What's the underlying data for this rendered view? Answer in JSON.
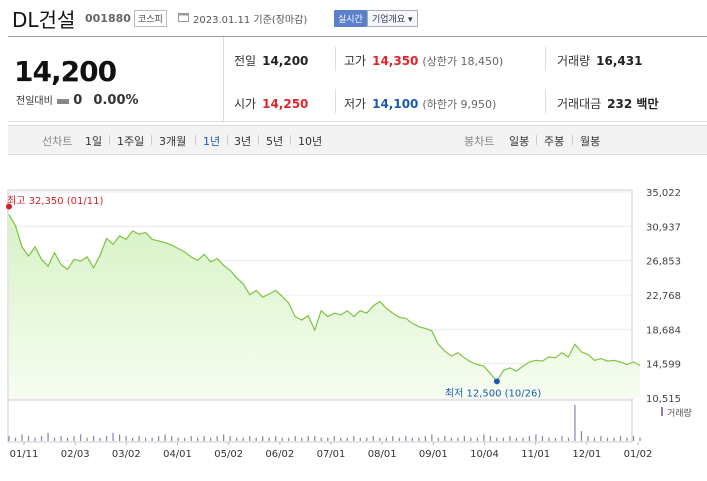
{
  "header": {
    "name": "DL건설",
    "code": "001880",
    "market": "코스피",
    "date": "2023.01.11 기준(장마감)",
    "realtime": "실시간",
    "overview": "기업개요 ▾"
  },
  "summary": {
    "price": "14,200",
    "change_label": "전일대비",
    "change": "0",
    "change_pct": "0.00%",
    "prev_label": "전일",
    "prev": "14,200",
    "high_label": "고가",
    "high": "14,350",
    "upper_limit": "(상한가 18,450)",
    "volume_label": "거래량",
    "volume": "16,431",
    "open_label": "시가",
    "open": "14,250",
    "low_label": "저가",
    "low": "14,100",
    "lower_limit": "(하한가 9,950)",
    "amount_label": "거래대금",
    "amount": "232 백만"
  },
  "tabs": {
    "line_label": "선차트",
    "line": [
      "1일",
      "1주일",
      "3개월",
      "1년",
      "3년",
      "5년",
      "10년"
    ],
    "selected": "1년",
    "candle_label": "봉차트",
    "candle": [
      "일봉",
      "주봉",
      "월봉"
    ]
  },
  "chart_data": {
    "type": "area",
    "title": "",
    "y_ticks": [
      "35,022",
      "30,937",
      "26,853",
      "22,768",
      "18,684",
      "14,599",
      "10,515"
    ],
    "ylim": [
      10515,
      35022
    ],
    "x_ticks": [
      "01/11",
      "02/03",
      "03/02",
      "04/01",
      "05/02",
      "06/02",
      "07/01",
      "08/01",
      "09/01",
      "10/04",
      "11/01",
      "12/01",
      "01/02"
    ],
    "max_label": "최고 32,350 (01/11)",
    "min_label": "최저 12,500 (10/26)",
    "volume_legend": "거래량",
    "series": [
      {
        "values": [
          32350,
          31000,
          28500,
          27400,
          28500,
          27000,
          26200,
          27800,
          26400,
          25800,
          27000,
          26800,
          27300,
          26000,
          27500,
          29500,
          28800,
          29800,
          29400,
          30400,
          30000,
          30200,
          29400,
          29200,
          29000,
          28700,
          28300,
          27900,
          27300,
          26900,
          27600,
          26700,
          27100,
          26300,
          25700,
          24800,
          24100,
          22800,
          23300,
          22500,
          22900,
          23300,
          22600,
          21800,
          20200,
          19800,
          20300,
          18600,
          20900,
          20200,
          20600,
          20400,
          20900,
          20200,
          20900,
          20600,
          21500,
          22000,
          21200,
          20600,
          20100,
          20000,
          19400,
          19000,
          18800,
          18500,
          16900,
          16100,
          15500,
          15900,
          15300,
          14800,
          14500,
          14300,
          13400,
          12500,
          13800,
          14100,
          13700,
          14300,
          14800,
          15000,
          14900,
          15400,
          15300,
          15900,
          15400,
          16900,
          16000,
          15700,
          15000,
          15200,
          14900,
          15000,
          14800,
          14500,
          14800,
          14400
        ]
      }
    ],
    "volume": [
      3,
      2,
      4,
      3,
      2,
      3,
      5,
      2,
      3,
      2,
      3,
      4,
      2,
      3,
      2,
      3,
      5,
      4,
      3,
      2,
      3,
      2,
      2,
      3,
      4,
      3,
      2,
      2,
      3,
      2,
      3,
      2,
      3,
      4,
      3,
      2,
      2,
      3,
      2,
      3,
      2,
      3,
      2,
      2,
      3,
      2,
      3,
      3,
      2,
      2,
      3,
      2,
      2,
      3,
      2,
      2,
      3,
      2,
      2,
      3,
      2,
      3,
      2,
      2,
      3,
      4,
      2,
      3,
      2,
      2,
      3,
      2,
      2,
      4,
      3,
      2,
      2,
      3,
      2,
      2,
      3,
      4,
      3,
      2,
      2,
      3,
      2,
      22,
      6,
      3,
      2,
      3,
      2,
      2,
      3,
      2,
      3,
      2
    ]
  }
}
